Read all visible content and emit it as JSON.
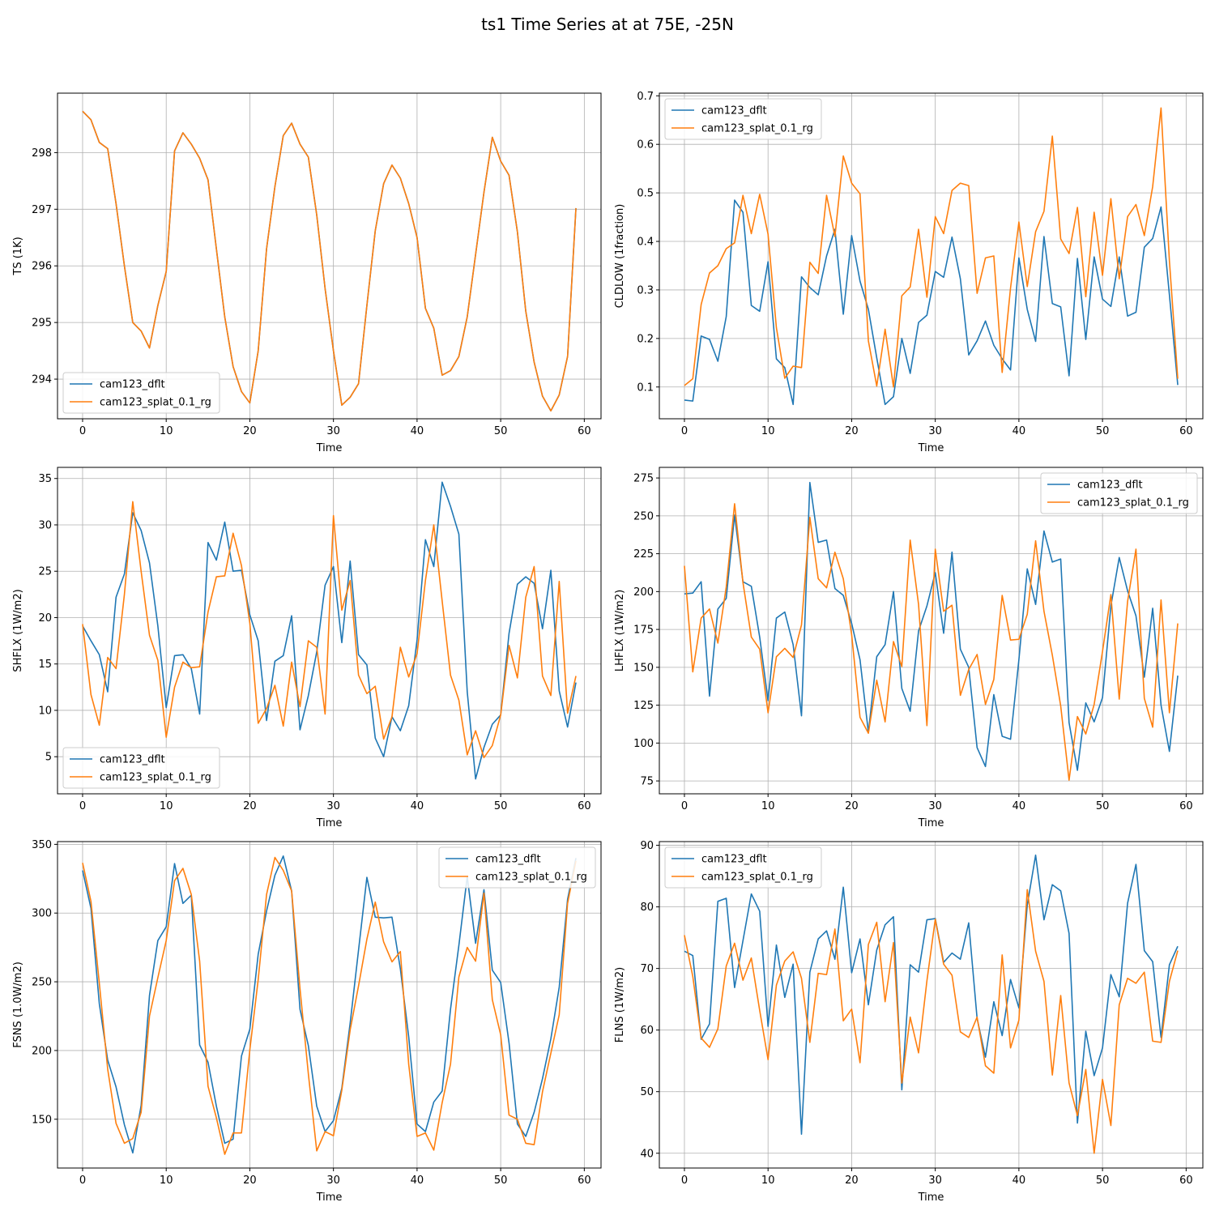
{
  "figure": {
    "title": "ts1 Time Series at at 75E, -25N"
  },
  "colors": {
    "series_a": "#1f77b4",
    "series_b": "#ff7f0e",
    "grid": "#b0b0b0",
    "axis": "#000000"
  },
  "chart_data": [
    {
      "id": "ts",
      "type": "line",
      "xlabel": "Time",
      "ylabel": "TS (1K)",
      "xlim": [
        -3,
        62
      ],
      "ylim": [
        293.3,
        299.05
      ],
      "xticks": [
        0,
        10,
        20,
        30,
        40,
        50,
        60
      ],
      "xtick_labels": [
        "0",
        "10",
        "20",
        "30",
        "40",
        "50",
        "60"
      ],
      "yticks": [
        294,
        295,
        296,
        297,
        298
      ],
      "ytick_labels": [
        "294",
        "295",
        "296",
        "297",
        "298"
      ],
      "legend": "lower-left",
      "series": [
        {
          "name": "cam123_dflt",
          "values": [
            298.73,
            298.58,
            298.18,
            298.07,
            297.1,
            296.0,
            295.0,
            294.85,
            294.55,
            295.3,
            295.9,
            298.03,
            298.35,
            298.15,
            297.9,
            297.52,
            296.3,
            295.1,
            294.22,
            293.78,
            293.58,
            294.5,
            296.3,
            297.4,
            298.3,
            298.52,
            298.15,
            297.92,
            296.9,
            295.6,
            294.5,
            293.54,
            293.68,
            293.92,
            295.3,
            296.62,
            297.45,
            297.78,
            297.55,
            297.1,
            296.5,
            295.25,
            294.9,
            294.07,
            294.15,
            294.4,
            295.1,
            296.2,
            297.3,
            298.27,
            297.85,
            297.6,
            296.6,
            295.2,
            294.3,
            293.7,
            293.44,
            293.72,
            294.4,
            297.02
          ]
        },
        {
          "name": "cam123_splat_0.1_rg",
          "values": [
            298.73,
            298.58,
            298.18,
            298.07,
            297.1,
            296.0,
            295.0,
            294.85,
            294.55,
            295.3,
            295.9,
            298.03,
            298.35,
            298.15,
            297.9,
            297.52,
            296.3,
            295.1,
            294.22,
            293.78,
            293.58,
            294.5,
            296.3,
            297.4,
            298.3,
            298.52,
            298.15,
            297.92,
            296.9,
            295.6,
            294.5,
            293.54,
            293.68,
            293.92,
            295.3,
            296.62,
            297.45,
            297.78,
            297.55,
            297.1,
            296.5,
            295.25,
            294.9,
            294.07,
            294.15,
            294.4,
            295.1,
            296.2,
            297.3,
            298.27,
            297.85,
            297.6,
            296.6,
            295.2,
            294.3,
            293.7,
            293.44,
            293.72,
            294.4,
            297.02
          ]
        }
      ]
    },
    {
      "id": "cldlow",
      "type": "line",
      "xlabel": "Time",
      "ylabel": "CLDLOW (1fraction)",
      "xlim": [
        -3,
        62
      ],
      "ylim": [
        0.0345,
        0.7055
      ],
      "xticks": [
        0,
        10,
        20,
        30,
        40,
        50,
        60
      ],
      "xtick_labels": [
        "0",
        "10",
        "20",
        "30",
        "40",
        "50",
        "60"
      ],
      "yticks": [
        0.1,
        0.2,
        0.3,
        0.4,
        0.5,
        0.6,
        0.7
      ],
      "ytick_labels": [
        "0.1",
        "0.2",
        "0.3",
        "0.4",
        "0.5",
        "0.6",
        "0.7"
      ],
      "legend": "upper-left",
      "series": [
        {
          "name": "cam123_dflt",
          "values": [
            0.073,
            0.071,
            0.205,
            0.198,
            0.153,
            0.245,
            0.485,
            0.46,
            0.268,
            0.256,
            0.358,
            0.158,
            0.14,
            0.064,
            0.327,
            0.305,
            0.29,
            0.37,
            0.425,
            0.25,
            0.412,
            0.318,
            0.26,
            0.16,
            0.064,
            0.08,
            0.2,
            0.128,
            0.233,
            0.248,
            0.338,
            0.326,
            0.409,
            0.323,
            0.166,
            0.195,
            0.236,
            0.186,
            0.158,
            0.135,
            0.366,
            0.26,
            0.194,
            0.41,
            0.272,
            0.265,
            0.123,
            0.365,
            0.198,
            0.368,
            0.281,
            0.266,
            0.368,
            0.246,
            0.254,
            0.388,
            0.406,
            0.471,
            0.29,
            0.104
          ]
        },
        {
          "name": "cam123_splat_0.1_rg",
          "values": [
            0.103,
            0.117,
            0.27,
            0.335,
            0.35,
            0.385,
            0.397,
            0.495,
            0.416,
            0.497,
            0.415,
            0.222,
            0.118,
            0.143,
            0.14,
            0.357,
            0.334,
            0.495,
            0.41,
            0.576,
            0.52,
            0.498,
            0.195,
            0.102,
            0.219,
            0.1,
            0.288,
            0.306,
            0.425,
            0.285,
            0.451,
            0.416,
            0.505,
            0.52,
            0.515,
            0.293,
            0.366,
            0.37,
            0.13,
            0.304,
            0.44,
            0.307,
            0.42,
            0.462,
            0.617,
            0.405,
            0.375,
            0.47,
            0.286,
            0.46,
            0.33,
            0.488,
            0.323,
            0.451,
            0.476,
            0.412,
            0.513,
            0.675,
            0.36,
            0.117
          ]
        }
      ]
    },
    {
      "id": "shflx",
      "type": "line",
      "xlabel": "Time",
      "ylabel": "SHFLX (1W/m2)",
      "xlim": [
        -3,
        62
      ],
      "ylim": [
        1.0,
        36.2
      ],
      "xticks": [
        0,
        10,
        20,
        30,
        40,
        50,
        60
      ],
      "xtick_labels": [
        "0",
        "10",
        "20",
        "30",
        "40",
        "50",
        "60"
      ],
      "yticks": [
        5,
        10,
        15,
        20,
        25,
        30,
        35
      ],
      "ytick_labels": [
        "5",
        "10",
        "15",
        "20",
        "25",
        "30",
        "35"
      ],
      "legend": "lower-left",
      "series": [
        {
          "name": "cam123_dflt",
          "values": [
            19.1,
            17.5,
            16.0,
            12.0,
            22.2,
            24.7,
            31.3,
            29.4,
            25.9,
            19.1,
            10.3,
            15.9,
            16.0,
            14.5,
            9.6,
            28.1,
            26.2,
            30.3,
            25.0,
            25.1,
            20.3,
            17.5,
            8.9,
            15.3,
            15.9,
            20.2,
            7.9,
            11.6,
            16.3,
            23.5,
            25.5,
            17.3,
            26.1,
            16.0,
            14.9,
            7.0,
            5.0,
            9.3,
            7.8,
            10.5,
            17.6,
            28.4,
            25.5,
            34.6,
            32.0,
            29.0,
            12.0,
            2.6,
            6.0,
            8.5,
            9.5,
            18.3,
            23.6,
            24.4,
            23.7,
            18.8,
            25.1,
            12.1,
            8.2,
            13.0
          ]
        },
        {
          "name": "cam123_splat_0.1_rg",
          "values": [
            19.3,
            11.7,
            8.4,
            15.7,
            14.5,
            22.5,
            32.5,
            25.0,
            18.1,
            15.4,
            7.1,
            12.5,
            15.2,
            14.6,
            14.7,
            20.6,
            24.4,
            24.5,
            29.1,
            25.6,
            19.4,
            8.6,
            10.2,
            12.7,
            8.3,
            15.2,
            10.4,
            17.5,
            16.8,
            9.6,
            31.0,
            20.8,
            24.0,
            13.8,
            11.8,
            12.6,
            6.9,
            9.3,
            16.8,
            13.6,
            16.1,
            24.0,
            30.0,
            21.8,
            13.8,
            11.1,
            5.2,
            7.8,
            4.9,
            6.2,
            9.5,
            17.0,
            13.5,
            22.2,
            25.5,
            13.7,
            11.6,
            23.9,
            9.7,
            13.7
          ]
        }
      ]
    },
    {
      "id": "lhflx",
      "type": "line",
      "xlabel": "Time",
      "ylabel": "LHFLX (1W/m2)",
      "xlim": [
        -3,
        62
      ],
      "ylim": [
        66.5,
        282
      ],
      "xticks": [
        0,
        10,
        20,
        30,
        40,
        50,
        60
      ],
      "xtick_labels": [
        "0",
        "10",
        "20",
        "30",
        "40",
        "50",
        "60"
      ],
      "yticks": [
        75,
        100,
        125,
        150,
        175,
        200,
        225,
        250,
        275
      ],
      "ytick_labels": [
        "75",
        "100",
        "125",
        "150",
        "175",
        "200",
        "225",
        "250",
        "275"
      ],
      "legend": "upper-right",
      "series": [
        {
          "name": "cam123_dflt",
          "values": [
            198.5,
            199.0,
            206.5,
            131.0,
            188.5,
            195.5,
            250.5,
            206.5,
            203.5,
            170.0,
            128.0,
            182.5,
            186.5,
            165.0,
            118.0,
            272.0,
            232.5,
            234.0,
            202.0,
            197.5,
            179.0,
            155.0,
            107.0,
            157.0,
            165.0,
            200.0,
            136.0,
            121.0,
            174.0,
            190.5,
            212.5,
            172.5,
            226.0,
            162.0,
            150.0,
            97.0,
            84.5,
            132.0,
            104.5,
            102.5,
            155.0,
            215.0,
            191.5,
            240.0,
            219.5,
            221.5,
            113.5,
            82.0,
            126.5,
            114.0,
            130.0,
            190.5,
            222.5,
            200.5,
            184.0,
            143.5,
            189.0,
            125.0,
            94.5,
            144.5
          ]
        },
        {
          "name": "cam123_splat_0.1_rg",
          "values": [
            217.0,
            147.0,
            182.5,
            188.5,
            166.0,
            203.0,
            258.0,
            206.0,
            170.0,
            162.0,
            120.0,
            157.0,
            162.5,
            156.5,
            178.0,
            249.0,
            208.5,
            202.5,
            226.0,
            208.5,
            171.5,
            117.0,
            106.5,
            141.5,
            114.0,
            167.0,
            150.5,
            234.0,
            191.5,
            111.5,
            228.0,
            187.0,
            191.0,
            131.5,
            148.5,
            158.5,
            125.5,
            142.0,
            197.5,
            168.0,
            168.5,
            185.0,
            233.5,
            187.0,
            158.0,
            124.5,
            75.5,
            117.5,
            106.0,
            125.5,
            160.5,
            198.0,
            129.0,
            193.5,
            228.0,
            129.5,
            110.5,
            194.5,
            120.0,
            179.0
          ]
        }
      ]
    },
    {
      "id": "fsns",
      "type": "line",
      "xlabel": "Time",
      "ylabel": "FSNS (1.0W/m2)",
      "xlim": [
        -3,
        62
      ],
      "ylim": [
        114.5,
        352
      ],
      "xticks": [
        0,
        10,
        20,
        30,
        40,
        50,
        60
      ],
      "xtick_labels": [
        "0",
        "10",
        "20",
        "30",
        "40",
        "50",
        "60"
      ],
      "yticks": [
        150,
        200,
        250,
        300,
        350
      ],
      "ytick_labels": [
        "150",
        "200",
        "250",
        "300",
        "350"
      ],
      "legend": "upper-right",
      "series": [
        {
          "name": "cam123_dflt",
          "values": [
            331.0,
            303.5,
            234.0,
            193.0,
            173.5,
            146.0,
            125.5,
            160.0,
            240.0,
            280.0,
            290.0,
            336.0,
            307.0,
            313.0,
            204.0,
            191.5,
            159.5,
            132.5,
            135.5,
            196.0,
            215.5,
            270.0,
            301.5,
            327.5,
            341.5,
            316.0,
            230.0,
            203.5,
            159.5,
            141.0,
            149.0,
            172.5,
            220.0,
            273.0,
            326.0,
            297.0,
            296.5,
            297.0,
            259.5,
            210.0,
            146.5,
            141.0,
            162.5,
            170.5,
            230.0,
            276.5,
            326.5,
            278.0,
            317.0,
            258.5,
            249.5,
            205.5,
            146.5,
            137.5,
            155.0,
            179.5,
            208.5,
            246.0,
            310.0,
            340.0
          ]
        },
        {
          "name": "cam123_splat_0.1_rg",
          "values": [
            336.5,
            308.5,
            249.0,
            186.5,
            147.0,
            132.5,
            136.0,
            155.0,
            225.0,
            253.0,
            280.0,
            323.5,
            332.5,
            313.5,
            265.0,
            174.0,
            151.0,
            124.5,
            140.0,
            140.0,
            200.5,
            251.5,
            313.5,
            340.5,
            331.0,
            316.0,
            245.0,
            183.0,
            127.0,
            141.0,
            138.0,
            171.0,
            215.0,
            247.0,
            281.0,
            308.0,
            279.0,
            264.5,
            272.0,
            190.0,
            137.5,
            140.0,
            127.5,
            162.0,
            190.0,
            253.5,
            275.0,
            265.0,
            314.5,
            237.0,
            211.5,
            153.0,
            150.0,
            132.5,
            131.5,
            170.0,
            198.0,
            226.0,
            307.0,
            338.0
          ]
        }
      ]
    },
    {
      "id": "flns",
      "type": "line",
      "xlabel": "Time",
      "ylabel": "FLNS (1W/m2)",
      "xlim": [
        -3,
        62
      ],
      "ylim": [
        37.6,
        90.6
      ],
      "xticks": [
        0,
        10,
        20,
        30,
        40,
        50,
        60
      ],
      "xtick_labels": [
        "0",
        "10",
        "20",
        "30",
        "40",
        "50",
        "60"
      ],
      "yticks": [
        40,
        50,
        60,
        70,
        80,
        90
      ],
      "ytick_labels": [
        "40",
        "50",
        "60",
        "70",
        "80",
        "90"
      ],
      "legend": "upper-left",
      "series": [
        {
          "name": "cam123_dflt",
          "values": [
            72.8,
            72.1,
            58.5,
            61.0,
            80.9,
            81.4,
            66.9,
            74.5,
            82.1,
            79.3,
            60.6,
            73.8,
            65.3,
            70.7,
            43.1,
            69.4,
            74.8,
            76.1,
            71.5,
            83.2,
            69.3,
            74.8,
            64.1,
            73.0,
            77.1,
            78.4,
            50.3,
            70.6,
            69.4,
            77.9,
            78.1,
            71.0,
            72.5,
            71.5,
            77.4,
            61.9,
            55.6,
            64.6,
            59.1,
            68.2,
            63.6,
            80.3,
            88.4,
            77.9,
            83.6,
            82.6,
            75.7,
            44.9,
            59.8,
            52.6,
            57.1,
            69.0,
            65.4,
            80.6,
            86.9,
            72.9,
            71.1,
            58.8,
            70.6,
            73.6
          ]
        },
        {
          "name": "cam123_splat_0.1_rg",
          "values": [
            75.4,
            68.7,
            58.7,
            57.2,
            60.2,
            70.4,
            74.1,
            68.1,
            71.7,
            63.2,
            55.2,
            67.3,
            71.2,
            72.7,
            68.4,
            58.0,
            69.2,
            69.0,
            76.4,
            61.5,
            63.4,
            54.7,
            73.9,
            77.5,
            64.6,
            74.2,
            51.4,
            62.1,
            56.3,
            68.0,
            78.0,
            70.7,
            68.9,
            59.7,
            58.8,
            62.1,
            54.2,
            53.0,
            72.2,
            57.1,
            61.6,
            82.8,
            72.8,
            67.9,
            52.7,
            65.6,
            51.4,
            46.1,
            53.6,
            40.0,
            52.0,
            44.5,
            64.1,
            68.4,
            67.6,
            69.4,
            58.2,
            58.0,
            67.9,
            72.9
          ]
        }
      ]
    }
  ]
}
